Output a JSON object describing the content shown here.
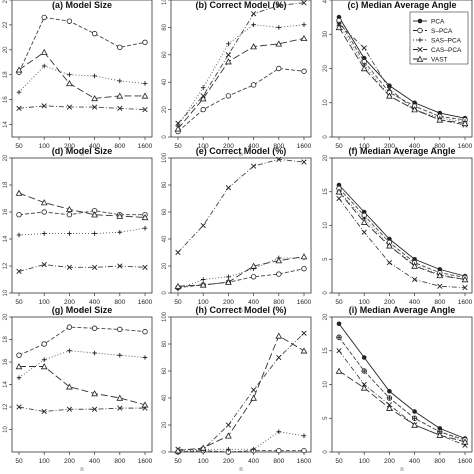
{
  "figure": {
    "legend": {
      "position": "top-right",
      "entries": [
        {
          "label": "PCA",
          "marker": "filled-circle",
          "dash": "solid"
        },
        {
          "label": "S–PCA",
          "marker": "circle",
          "dash": "dash"
        },
        {
          "label": "SAS–PCA",
          "marker": "plus",
          "dash": "dot"
        },
        {
          "label": "CAS–PCA",
          "marker": "cross",
          "dash": "dotdash"
        },
        {
          "label": "VAST",
          "marker": "triangle",
          "dash": "longdash"
        }
      ]
    }
  },
  "chart_data": [
    {
      "type": "line",
      "title": "(a) Model Size",
      "xlabel": "n",
      "ylabel": "",
      "categories": [
        "50",
        "100",
        "200",
        "400",
        "800",
        "1600"
      ],
      "ylim": [
        13,
        24
      ],
      "yticks": [
        14,
        16,
        18,
        20,
        22,
        24
      ],
      "series": [
        {
          "name": "S–PCA",
          "values": [
            18.2,
            22.6,
            22.3,
            21.3,
            20.2,
            20.6
          ]
        },
        {
          "name": "SAS–PCA",
          "values": [
            16.6,
            18.7,
            18.0,
            17.9,
            17.5,
            17.3
          ]
        },
        {
          "name": "CAS–PCA",
          "values": [
            15.3,
            15.5,
            15.4,
            15.4,
            15.3,
            15.2
          ]
        },
        {
          "name": "VAST",
          "values": [
            18.4,
            19.8,
            17.3,
            16.1,
            16.3,
            16.3
          ]
        }
      ]
    },
    {
      "type": "line",
      "title": "(b) Correct Model (%)",
      "xlabel": "n",
      "ylabel": "",
      "categories": [
        "50",
        "100",
        "200",
        "400",
        "800",
        "1600"
      ],
      "ylim": [
        0,
        100
      ],
      "yticks": [
        0,
        20,
        40,
        60,
        80,
        100
      ],
      "series": [
        {
          "name": "S–PCA",
          "values": [
            4,
            20,
            30,
            38,
            50,
            48
          ]
        },
        {
          "name": "SAS–PCA",
          "values": [
            8,
            36,
            68,
            82,
            80,
            82
          ]
        },
        {
          "name": "CAS–PCA",
          "values": [
            10,
            30,
            60,
            90,
            96,
            98
          ]
        },
        {
          "name": "VAST",
          "values": [
            6,
            28,
            55,
            66,
            68,
            72
          ]
        }
      ]
    },
    {
      "type": "line",
      "title": "(c) Median Average Angle",
      "xlabel": "n",
      "ylabel": "",
      "categories": [
        "50",
        "100",
        "200",
        "400",
        "800",
        "1600"
      ],
      "ylim": [
        0,
        40
      ],
      "yticks": [
        0,
        10,
        20,
        30,
        40
      ],
      "series": [
        {
          "name": "PCA",
          "values": [
            35,
            23,
            15,
            10,
            7,
            5.5
          ]
        },
        {
          "name": "S–PCA",
          "values": [
            34,
            22,
            13,
            9,
            6,
            5
          ]
        },
        {
          "name": "SAS–PCA",
          "values": [
            33,
            21,
            12,
            8,
            5.5,
            4.5
          ]
        },
        {
          "name": "CAS–PCA",
          "values": [
            33,
            26,
            14,
            8,
            5,
            3.5
          ]
        },
        {
          "name": "VAST",
          "values": [
            32,
            20,
            12,
            8,
            5,
            4
          ]
        }
      ]
    },
    {
      "type": "line",
      "title": "(d) Model Size",
      "xlabel": "n",
      "ylabel": "",
      "categories": [
        "50",
        "100",
        "200",
        "400",
        "800",
        "1600"
      ],
      "ylim": [
        10,
        20
      ],
      "yticks": [
        10,
        12,
        14,
        16,
        18,
        20
      ],
      "series": [
        {
          "name": "S–PCA",
          "values": [
            15.8,
            16.0,
            15.8,
            16.1,
            15.8,
            15.8
          ]
        },
        {
          "name": "SAS–PCA",
          "values": [
            14.3,
            14.4,
            14.4,
            14.4,
            14.5,
            14.8
          ]
        },
        {
          "name": "CAS–PCA",
          "values": [
            11.6,
            12.1,
            11.9,
            11.9,
            12.0,
            11.9
          ]
        },
        {
          "name": "VAST",
          "values": [
            17.4,
            16.7,
            16.2,
            15.8,
            15.7,
            15.6
          ]
        }
      ]
    },
    {
      "type": "line",
      "title": "(e) Correct Model (%)",
      "xlabel": "n",
      "ylabel": "",
      "categories": [
        "50",
        "100",
        "200",
        "400",
        "800",
        "1600"
      ],
      "ylim": [
        0,
        100
      ],
      "yticks": [
        0,
        20,
        40,
        60,
        80,
        100
      ],
      "series": [
        {
          "name": "S–PCA",
          "values": [
            4,
            6,
            8,
            12,
            14,
            18
          ]
        },
        {
          "name": "SAS–PCA",
          "values": [
            3,
            10,
            12,
            18,
            26,
            26
          ]
        },
        {
          "name": "CAS–PCA",
          "values": [
            30,
            50,
            78,
            94,
            99,
            97
          ]
        },
        {
          "name": "VAST",
          "values": [
            5,
            6,
            8,
            20,
            24,
            27
          ]
        }
      ]
    },
    {
      "type": "line",
      "title": "(f) Median Average Angle",
      "xlabel": "n",
      "ylabel": "",
      "categories": [
        "50",
        "100",
        "200",
        "400",
        "800",
        "1600"
      ],
      "ylim": [
        0,
        20
      ],
      "yticks": [
        0,
        5,
        10,
        15,
        20
      ],
      "series": [
        {
          "name": "PCA",
          "values": [
            16,
            12,
            8,
            5,
            3.5,
            2.5
          ]
        },
        {
          "name": "S–PCA",
          "values": [
            15.5,
            11.5,
            7.5,
            4.5,
            3,
            2.3
          ]
        },
        {
          "name": "SAS–PCA",
          "values": [
            15,
            11,
            7,
            4.2,
            2.7,
            2
          ]
        },
        {
          "name": "CAS–PCA",
          "values": [
            14,
            9,
            4.5,
            2,
            1,
            0.8
          ]
        },
        {
          "name": "VAST",
          "values": [
            15,
            10.5,
            7,
            4,
            2.6,
            2
          ]
        }
      ]
    },
    {
      "type": "line",
      "title": "(g) Model Size",
      "xlabel": "n",
      "ylabel": "",
      "categories": [
        "50",
        "100",
        "200",
        "400",
        "800",
        "1600"
      ],
      "ylim": [
        8,
        20
      ],
      "yticks": [
        10,
        12,
        14,
        16,
        18,
        20
      ],
      "series": [
        {
          "name": "S–PCA",
          "values": [
            16.6,
            17.6,
            19.1,
            19.0,
            18.9,
            18.7
          ]
        },
        {
          "name": "SAS–PCA",
          "values": [
            14.6,
            16.2,
            17.0,
            16.8,
            16.6,
            16.4
          ]
        },
        {
          "name": "CAS–PCA",
          "values": [
            12.0,
            11.6,
            11.8,
            11.8,
            11.9,
            11.9
          ]
        },
        {
          "name": "VAST",
          "values": [
            15.6,
            15.6,
            13.8,
            13.2,
            12.8,
            12.2
          ]
        }
      ]
    },
    {
      "type": "line",
      "title": "(h) Correct Model (%)",
      "xlabel": "n",
      "ylabel": "",
      "categories": [
        "50",
        "100",
        "200",
        "400",
        "800",
        "1600"
      ],
      "ylim": [
        0,
        100
      ],
      "yticks": [
        0,
        20,
        40,
        60,
        80,
        100
      ],
      "series": [
        {
          "name": "S–PCA",
          "values": [
            0,
            1,
            0,
            1,
            1,
            1
          ]
        },
        {
          "name": "SAS–PCA",
          "values": [
            0,
            2,
            2,
            2,
            15,
            12
          ]
        },
        {
          "name": "CAS–PCA",
          "values": [
            2,
            2,
            20,
            46,
            70,
            88
          ]
        },
        {
          "name": "VAST",
          "values": [
            1,
            3,
            12,
            40,
            86,
            75
          ]
        }
      ]
    },
    {
      "type": "line",
      "title": "(i) Median Average Angle",
      "xlabel": "n",
      "ylabel": "",
      "categories": [
        "50",
        "100",
        "200",
        "400",
        "800",
        "1600"
      ],
      "ylim": [
        0,
        20
      ],
      "yticks": [
        0,
        5,
        10,
        15,
        20
      ],
      "series": [
        {
          "name": "PCA",
          "values": [
            19,
            14,
            9,
            6,
            3.5,
            2
          ]
        },
        {
          "name": "S–PCA",
          "values": [
            17,
            12,
            8,
            5,
            3,
            1.8
          ]
        },
        {
          "name": "SAS–PCA",
          "values": [
            17,
            12,
            8,
            5,
            3,
            1.5
          ]
        },
        {
          "name": "CAS–PCA",
          "values": [
            15,
            10,
            7,
            4,
            2.5,
            1
          ]
        },
        {
          "name": "VAST",
          "values": [
            12,
            9.5,
            6.5,
            4,
            2.5,
            1.5
          ]
        }
      ]
    }
  ]
}
